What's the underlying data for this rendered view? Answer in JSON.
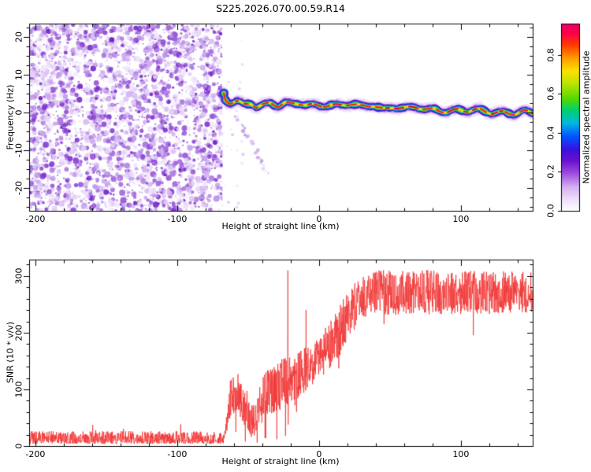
{
  "title": "S225.2026.070.00.59.R14",
  "chart_data": [
    {
      "type": "heatmap",
      "name": "dynamic-spectrum",
      "xlabel": "Height of straight line (km)",
      "ylabel": "Frequency (Hz)",
      "xlim": [
        -204.4,
        150.6
      ],
      "ylim": [
        -26,
        23.5
      ],
      "x_ticks": [
        -200,
        -100,
        0,
        100
      ],
      "x_minor_step": 20,
      "y_ticks": [
        20,
        10,
        0,
        -10,
        -20
      ],
      "y_minor_step": 2.5,
      "grid": false,
      "colorbar": {
        "label": "Normalized spectral amplitude",
        "ticks": [
          "0.0",
          "0.2",
          "0.4",
          "0.6",
          "0.8"
        ],
        "tick_values": [
          0,
          0.2,
          0.4,
          0.6,
          0.8
        ],
        "range": [
          0,
          0.96
        ],
        "stops": [
          [
            0,
            "#ffffff"
          ],
          [
            0.06,
            "#f0e2fa"
          ],
          [
            0.13,
            "#d4aff0"
          ],
          [
            0.2,
            "#9e4fe0"
          ],
          [
            0.27,
            "#6a10d0"
          ],
          [
            0.33,
            "#3a10e0"
          ],
          [
            0.4,
            "#0055ff"
          ],
          [
            0.47,
            "#00b8e0"
          ],
          [
            0.54,
            "#00d070"
          ],
          [
            0.6,
            "#55d800"
          ],
          [
            0.68,
            "#b8e400"
          ],
          [
            0.75,
            "#ffe000"
          ],
          [
            0.82,
            "#ff9800"
          ],
          [
            0.89,
            "#ff3800"
          ],
          [
            0.95,
            "#fa0048"
          ],
          [
            1,
            "#f0006a"
          ]
        ]
      },
      "noise_region": {
        "x_start_km": -204.4,
        "x_end_km": -68,
        "description": "dense purple speckle noise, no coherent signal",
        "palette": [
          "#f2e9fb",
          "#ddc4f4",
          "#bf97ea",
          "#9c60db",
          "#7e30cd",
          "#6a13c4"
        ]
      },
      "signal_track": {
        "x_start_km": -67.2,
        "x_end_km": 150.6,
        "peak_amplitude": 0.95,
        "center_freq_hz": [
          [
            -67.2,
            5
          ],
          [
            -66,
            3.2
          ],
          [
            -63,
            2.3
          ],
          [
            -58,
            2.8
          ],
          [
            -53,
            1.9
          ],
          [
            -48,
            2.5
          ],
          [
            -44,
            1.6
          ],
          [
            -39,
            2.3
          ],
          [
            -34,
            2.7
          ],
          [
            -29,
            1.7
          ],
          [
            -24,
            2.4
          ],
          [
            -19,
            2
          ],
          [
            -14,
            2.2
          ],
          [
            -9,
            1.9
          ],
          [
            -4,
            2.1
          ],
          [
            2,
            2
          ],
          [
            8,
            2.1
          ],
          [
            15,
            1.9
          ],
          [
            22,
            2
          ],
          [
            30,
            1.5
          ],
          [
            38,
            2
          ],
          [
            45,
            1.1
          ],
          [
            52,
            1.6
          ],
          [
            60,
            0.9
          ],
          [
            68,
            1.3
          ],
          [
            75,
            0.6
          ],
          [
            82,
            1.1
          ],
          [
            90,
            0.3
          ],
          [
            98,
            0.8
          ],
          [
            106,
            0.1
          ],
          [
            114,
            0.6
          ],
          [
            122,
            -0.1
          ],
          [
            130,
            0.4
          ],
          [
            138,
            -0.3
          ],
          [
            145,
            0.2
          ],
          [
            150.6,
            -0.4
          ]
        ],
        "halo_colors": [
          [
            "#c79bee",
            13,
            0.3,
            2.2
          ],
          [
            "#9a55de",
            9.5,
            0.55,
            1.4
          ],
          [
            "#6717c9",
            7.6,
            0.9,
            0.8
          ],
          [
            "#2f1ddd",
            6,
            1,
            0.5
          ],
          [
            "#00b2ea",
            4.6,
            1,
            0.35
          ],
          [
            "#2ccc42",
            3.5,
            1,
            0.25
          ],
          [
            "#abdc0c",
            2.5,
            1,
            0.18
          ],
          [
            "#ffd900",
            1.8,
            1,
            0.12
          ]
        ],
        "core_colors": [
          "#f01a28",
          "#e4003c"
        ],
        "sidelobe_trail": {
          "from_km": -58,
          "from_hz": -1,
          "to_km": -36,
          "to_hz": -16
        }
      }
    },
    {
      "type": "line",
      "name": "snr-profile",
      "xlabel": "Height of straight line (km)",
      "ylabel": "SNR (10 * v/v)",
      "xlim": [
        -204.4,
        150.6
      ],
      "ylim": [
        0,
        329
      ],
      "x_ticks": [
        -200,
        -100,
        0,
        100
      ],
      "x_minor_step": 20,
      "y_ticks": [
        0,
        100,
        200,
        300
      ],
      "y_minor_step": 20,
      "line_color": "#f03432",
      "series": [
        {
          "name": "SNR",
          "mean_profile": [
            [
              -204.4,
              15
            ],
            [
              -67,
              15
            ],
            [
              -65,
              40
            ],
            [
              -63,
              85
            ],
            [
              -58,
              95
            ],
            [
              -53,
              75
            ],
            [
              -48,
              45
            ],
            [
              -45,
              40
            ],
            [
              -41,
              85
            ],
            [
              -36,
              95
            ],
            [
              -31,
              100
            ],
            [
              -27,
              108
            ],
            [
              -22,
              118
            ],
            [
              -17,
              122
            ],
            [
              -12,
              132
            ],
            [
              -7,
              145
            ],
            [
              -2,
              155
            ],
            [
              3,
              165
            ],
            [
              8,
              178
            ],
            [
              13,
              196
            ],
            [
              18,
              222
            ],
            [
              23,
              246
            ],
            [
              28,
              260
            ],
            [
              35,
              268
            ],
            [
              45,
              272
            ],
            [
              60,
              270
            ],
            [
              75,
              273
            ],
            [
              90,
              268
            ],
            [
              105,
              272
            ],
            [
              120,
              270
            ],
            [
              135,
              272
            ],
            [
              150.6,
              270
            ]
          ],
          "noise_spread": [
            [
              -204.4,
              7
            ],
            [
              -67,
              7
            ],
            [
              -65,
              30
            ],
            [
              -55,
              38
            ],
            [
              -45,
              32
            ],
            [
              -35,
              42
            ],
            [
              -25,
              45
            ],
            [
              -15,
              42
            ],
            [
              -5,
              40
            ],
            [
              5,
              42
            ],
            [
              15,
              45
            ],
            [
              25,
              42
            ],
            [
              40,
              40
            ],
            [
              150.6,
              36
            ]
          ],
          "spikes": [
            [
              -22,
              310
            ],
            [
              -9.5,
              240
            ]
          ],
          "dips": [
            [
              -52,
              8
            ],
            [
              -44,
              6
            ],
            [
              -38,
              14
            ],
            [
              -30,
              12
            ],
            [
              -24,
              18
            ]
          ]
        }
      ]
    }
  ]
}
